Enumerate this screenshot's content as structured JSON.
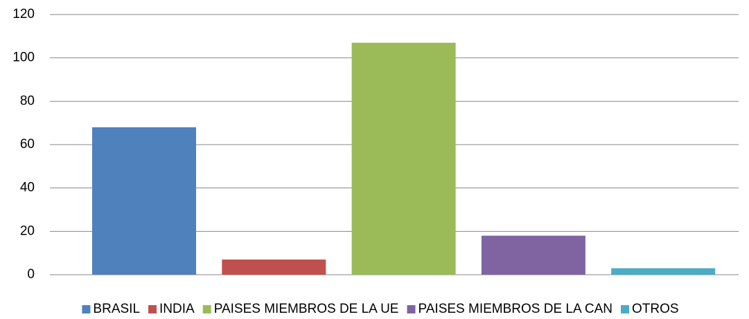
{
  "chart_data": {
    "type": "bar",
    "categories": [
      null
    ],
    "series": [
      {
        "name": "BRASIL",
        "color": "#4f81bd",
        "values": [
          68
        ]
      },
      {
        "name": "INDIA",
        "color": "#c0504d",
        "values": [
          7
        ]
      },
      {
        "name": "PAISES MIEMBROS DE LA UE",
        "color": "#9bbb59",
        "values": [
          107
        ]
      },
      {
        "name": "PAISES MIEMBROS DE LA CAN",
        "color": "#8064a2",
        "values": [
          18
        ]
      },
      {
        "name": "OTROS",
        "color": "#4bacc6",
        "values": [
          3
        ]
      }
    ],
    "ylim": [
      0,
      120
    ],
    "yticks": [
      0,
      20,
      40,
      60,
      80,
      100,
      120
    ],
    "grid": true,
    "legend": "bottom"
  }
}
